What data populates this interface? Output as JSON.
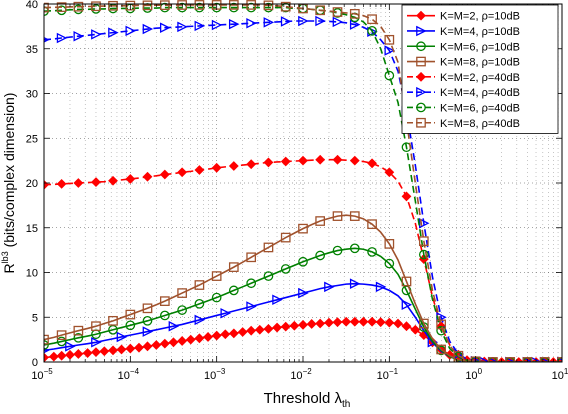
{
  "chart_data": {
    "type": "line",
    "xlabel_main": "Threshold λ",
    "xlabel_sub": "th",
    "ylabel_main": "R",
    "ylabel_sup": "lb3",
    "ylabel_rest": " (bits/complex dimension)",
    "x_scale": "log",
    "xlim": [
      1e-05,
      10
    ],
    "ylim": [
      0,
      40
    ],
    "grid": true,
    "legend_position": "top-right",
    "x_ticks": [
      {
        "value": 1e-05,
        "base": "10",
        "exp": "−5"
      },
      {
        "value": 0.0001,
        "base": "10",
        "exp": "−4"
      },
      {
        "value": 0.001,
        "base": "10",
        "exp": "−3"
      },
      {
        "value": 0.01,
        "base": "10",
        "exp": "−2"
      },
      {
        "value": 0.1,
        "base": "10",
        "exp": "−1"
      },
      {
        "value": 1,
        "base": "10",
        "exp": "0"
      },
      {
        "value": 10,
        "base": "10",
        "exp": "1"
      }
    ],
    "y_ticks": [
      0,
      5,
      10,
      15,
      20,
      25,
      30,
      35,
      40
    ],
    "x": [
      1e-05,
      1.3e-05,
      1.6e-05,
      2e-05,
      2.5e-05,
      3.2e-05,
      4e-05,
      5e-05,
      6.3e-05,
      7.9e-05,
      0.0001,
      0.000126,
      0.000158,
      0.0002,
      0.000251,
      0.000316,
      0.000398,
      0.000501,
      0.000631,
      0.000794,
      0.001,
      0.00126,
      0.00158,
      0.002,
      0.00251,
      0.00316,
      0.00398,
      0.00501,
      0.00631,
      0.00794,
      0.01,
      0.0126,
      0.0158,
      0.02,
      0.0251,
      0.0316,
      0.0398,
      0.0501,
      0.0631,
      0.0794,
      0.1,
      0.126,
      0.158,
      0.2,
      0.251,
      0.316,
      0.398,
      0.501,
      0.631,
      0.794,
      1,
      1.26,
      1.58,
      2,
      2.51,
      3.16,
      3.98,
      5.01,
      6.31,
      7.94,
      10
    ],
    "series": [
      {
        "name": "K=M=2, ρ=10dB",
        "color": "#ff0000",
        "dash": "solid",
        "marker": "diamond-filled",
        "marker_every": 1,
        "values": [
          0.5,
          0.6,
          0.7,
          0.8,
          0.9,
          1.0,
          1.1,
          1.2,
          1.3,
          1.4,
          1.5,
          1.6,
          1.75,
          1.9,
          2.05,
          2.2,
          2.35,
          2.5,
          2.65,
          2.8,
          2.95,
          3.1,
          3.2,
          3.35,
          3.5,
          3.6,
          3.7,
          3.85,
          3.95,
          4.05,
          4.15,
          4.25,
          4.3,
          4.4,
          4.45,
          4.5,
          4.5,
          4.5,
          4.5,
          4.45,
          4.4,
          4.3,
          4.0,
          3.6,
          3.0,
          2.2,
          1.4,
          0.8,
          0.4,
          0.2,
          0.1,
          0.05,
          0.02,
          0.0,
          0.0,
          0.0,
          0.0,
          0.0,
          0.0,
          0.0,
          0.0
        ]
      },
      {
        "name": "K=M=4, ρ=10dB",
        "color": "#0000ff",
        "dash": "solid",
        "marker": "triangle-right",
        "marker_every": 3,
        "values": [
          1.3,
          1.45,
          1.6,
          1.75,
          1.9,
          2.05,
          2.2,
          2.4,
          2.6,
          2.8,
          3.0,
          3.2,
          3.4,
          3.6,
          3.8,
          4.0,
          4.2,
          4.45,
          4.7,
          4.95,
          5.2,
          5.45,
          5.7,
          5.95,
          6.2,
          6.45,
          6.7,
          6.95,
          7.2,
          7.45,
          7.7,
          7.95,
          8.2,
          8.4,
          8.55,
          8.7,
          8.75,
          8.7,
          8.6,
          8.4,
          8.0,
          7.4,
          6.4,
          5.0,
          3.5,
          2.2,
          1.2,
          0.6,
          0.25,
          0.1,
          0.05,
          0.02,
          0.0,
          0.0,
          0.0,
          0.0,
          0.0,
          0.0,
          0.0,
          0.0,
          0.0
        ]
      },
      {
        "name": "K=M=6, ρ=10dB",
        "color": "#008000",
        "dash": "solid",
        "marker": "circle",
        "marker_every": 2,
        "values": [
          1.9,
          2.1,
          2.3,
          2.5,
          2.7,
          2.9,
          3.1,
          3.35,
          3.6,
          3.85,
          4.1,
          4.35,
          4.6,
          4.9,
          5.2,
          5.5,
          5.8,
          6.15,
          6.5,
          6.85,
          7.2,
          7.6,
          8.0,
          8.4,
          8.8,
          9.2,
          9.6,
          10.0,
          10.4,
          10.8,
          11.2,
          11.55,
          11.9,
          12.2,
          12.45,
          12.6,
          12.7,
          12.6,
          12.3,
          11.8,
          11.0,
          9.8,
          8.0,
          5.9,
          3.9,
          2.3,
          1.3,
          0.6,
          0.25,
          0.1,
          0.05,
          0.02,
          0.0,
          0.0,
          0.0,
          0.0,
          0.0,
          0.0,
          0.0,
          0.0,
          0.0
        ]
      },
      {
        "name": "K=M=8, ρ=10dB",
        "color": "#a0522d",
        "dash": "solid",
        "marker": "square",
        "marker_every": 2,
        "values": [
          2.5,
          2.75,
          3.0,
          3.25,
          3.5,
          3.75,
          4.0,
          4.3,
          4.6,
          4.95,
          5.3,
          5.65,
          6.0,
          6.4,
          6.8,
          7.25,
          7.7,
          8.15,
          8.6,
          9.1,
          9.6,
          10.1,
          10.6,
          11.15,
          11.7,
          12.25,
          12.8,
          13.35,
          13.9,
          14.4,
          14.9,
          15.35,
          15.75,
          16.05,
          16.3,
          16.4,
          16.3,
          16.0,
          15.4,
          14.5,
          13.2,
          11.4,
          9.0,
          6.5,
          4.3,
          2.6,
          1.4,
          0.7,
          0.3,
          0.1,
          0.05,
          0.02,
          0.0,
          0.0,
          0.0,
          0.0,
          0.0,
          0.0,
          0.0,
          0.0,
          0.0
        ]
      },
      {
        "name": "K=M=2, ρ=40dB",
        "color": "#ff0000",
        "dash": "dashed",
        "marker": "diamond-filled",
        "marker_every": 2,
        "values": [
          19.8,
          19.85,
          19.9,
          19.95,
          20.0,
          20.05,
          20.1,
          20.15,
          20.25,
          20.35,
          20.45,
          20.55,
          20.7,
          20.8,
          20.95,
          21.05,
          21.2,
          21.3,
          21.45,
          21.55,
          21.7,
          21.8,
          21.9,
          22.0,
          22.1,
          22.2,
          22.3,
          22.35,
          22.4,
          22.45,
          22.5,
          22.55,
          22.6,
          22.6,
          22.6,
          22.55,
          22.5,
          22.4,
          22.2,
          21.8,
          21.2,
          20.2,
          18.5,
          15.5,
          11.5,
          7.3,
          4.0,
          1.9,
          0.8,
          0.3,
          0.1,
          0.03,
          0.0,
          0.0,
          0.0,
          0.0,
          0.0,
          0.0,
          0.0,
          0.0,
          0.0
        ]
      },
      {
        "name": "K=M=4, ρ=40dB",
        "color": "#0000ff",
        "dash": "dashed",
        "marker": "triangle-right",
        "marker_every": 2,
        "values": [
          36.0,
          36.1,
          36.2,
          36.3,
          36.4,
          36.5,
          36.6,
          36.7,
          36.8,
          36.9,
          37.0,
          37.1,
          37.2,
          37.3,
          37.35,
          37.4,
          37.45,
          37.5,
          37.55,
          37.6,
          37.65,
          37.7,
          37.75,
          37.8,
          37.85,
          37.9,
          37.95,
          38.0,
          38.05,
          38.1,
          38.1,
          38.1,
          38.1,
          38.05,
          38.0,
          37.9,
          37.7,
          37.4,
          36.9,
          36.0,
          34.8,
          32.5,
          28.0,
          22.0,
          15.5,
          9.5,
          5.0,
          2.3,
          0.9,
          0.3,
          0.1,
          0.03,
          0.0,
          0.0,
          0.0,
          0.0,
          0.0,
          0.0,
          0.0,
          0.0,
          0.0
        ]
      },
      {
        "name": "K=M=6, ρ=40dB",
        "color": "#008000",
        "dash": "dashed",
        "marker": "circle",
        "marker_every": 2,
        "values": [
          39.2,
          39.25,
          39.3,
          39.35,
          39.4,
          39.4,
          39.45,
          39.45,
          39.5,
          39.5,
          39.5,
          39.55,
          39.55,
          39.55,
          39.6,
          39.6,
          39.6,
          39.6,
          39.6,
          39.6,
          39.6,
          39.6,
          39.6,
          39.6,
          39.6,
          39.6,
          39.6,
          39.6,
          39.6,
          39.5,
          39.5,
          39.4,
          39.3,
          39.2,
          39.0,
          38.8,
          38.5,
          38.0,
          37.0,
          35.0,
          32.0,
          29.0,
          24.0,
          18.0,
          12.0,
          7.0,
          3.5,
          1.5,
          0.6,
          0.2,
          0.08,
          0.02,
          0.0,
          0.0,
          0.0,
          0.0,
          0.0,
          0.0,
          0.0,
          0.0,
          0.0
        ]
      },
      {
        "name": "K=M=8, ρ=40dB",
        "color": "#a0522d",
        "dash": "dashed",
        "marker": "square",
        "marker_every": 2,
        "values": [
          39.6,
          39.62,
          39.65,
          39.67,
          39.7,
          39.72,
          39.75,
          39.77,
          39.8,
          39.8,
          39.82,
          39.84,
          39.85,
          39.86,
          39.87,
          39.88,
          39.89,
          39.9,
          39.9,
          39.9,
          39.9,
          39.9,
          39.9,
          39.9,
          39.9,
          39.9,
          39.85,
          39.8,
          39.7,
          39.6,
          39.5,
          39.4,
          39.3,
          39.2,
          39.1,
          39.0,
          38.9,
          38.7,
          38.3,
          37.5,
          36.0,
          33.5,
          27.0,
          20.0,
          13.5,
          8.0,
          4.2,
          1.8,
          0.7,
          0.25,
          0.08,
          0.02,
          0.0,
          0.0,
          0.0,
          0.0,
          0.0,
          0.0,
          0.0,
          0.0,
          0.0
        ]
      }
    ]
  }
}
